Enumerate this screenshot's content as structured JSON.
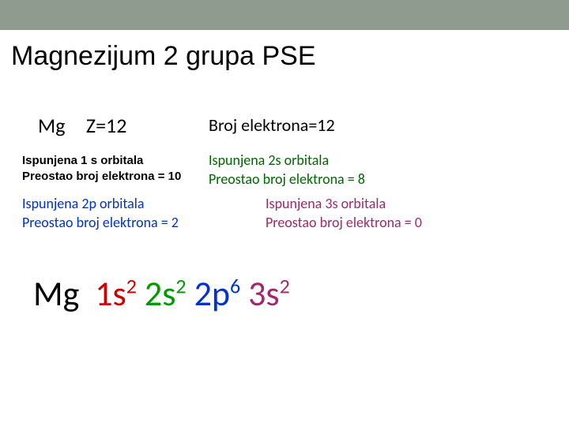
{
  "title": "Magnezijum 2 grupa PSE",
  "row1": {
    "symbol": "Mg",
    "z": "Z=12",
    "electron_count": "Broj elektrona=12"
  },
  "orbital_1s": {
    "line1": "Ispunjena 1 s orbitala",
    "line2": "Preostao broj elektrona = 10"
  },
  "orbital_2s": {
    "line1": "Ispunjena 2s orbitala",
    "line2": "Preostao broj elektrona = 8"
  },
  "orbital_2p": {
    "line1": "Ispunjena 2p orbitala",
    "line2": "Preostao broj elektrona = 2"
  },
  "orbital_3s": {
    "line1": "Ispunjena 3s orbitala",
    "line2": "Preostao broj elektrona = 0"
  },
  "config": {
    "element": "Mg",
    "t1": "1s",
    "e1": "2",
    "t2": "2s",
    "e2": "2",
    "t3": "2p",
    "e3": "6",
    "t4": "3s",
    "e4": "2"
  },
  "colors": {
    "topbar": "#8f9b8f",
    "c_1s": "#cc0000",
    "c_2s": "#009900",
    "c_2p": "#0033cc",
    "c_3s": "#a0286c"
  }
}
